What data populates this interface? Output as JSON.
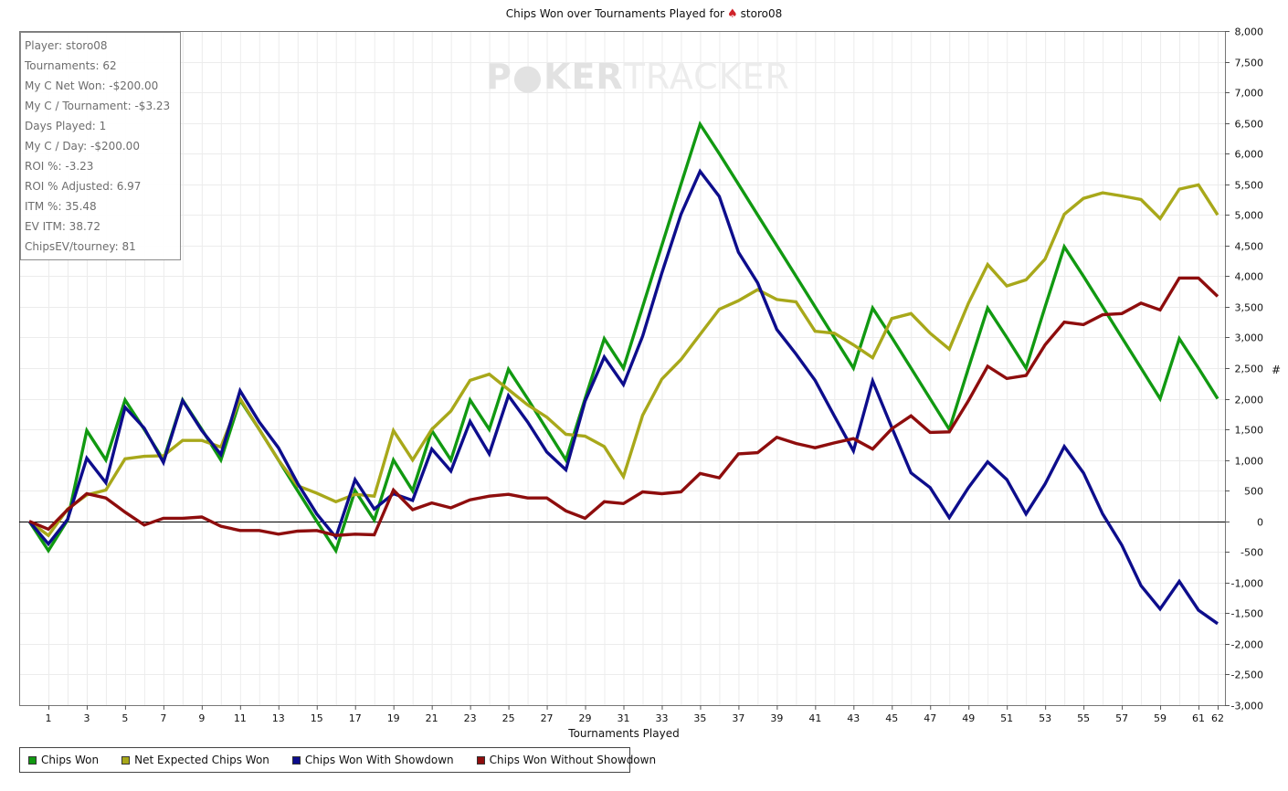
{
  "title": {
    "prefix": "Chips Won over Tournaments Played for",
    "icon": "spade-icon",
    "player": "storo08"
  },
  "watermark": {
    "bold": "P●KER",
    "light": "TRACKER"
  },
  "stats_box": [
    "Player: storo08",
    "Tournaments: 62",
    "My C Net Won: -$200.00",
    "My C / Tournament: -$3.23",
    "Days Played: 1",
    "My C / Day: -$200.00",
    "ROI %: -3.23",
    "ROI % Adjusted: 6.97",
    "ITM %: 35.48",
    "EV ITM: 38.72",
    "ChipsEV/tourney: 81"
  ],
  "legend": [
    {
      "label": "Chips Won",
      "color": "#119911"
    },
    {
      "label": "Net Expected Chips Won",
      "color": "#a8a81a"
    },
    {
      "label": "Chips Won With Showdown",
      "color": "#0d0d8c"
    },
    {
      "label": "Chips Won Without Showdown",
      "color": "#8e0d0d"
    }
  ],
  "chart_data": {
    "type": "line",
    "xlabel": "Tournaments Played",
    "ylabel": "#",
    "xlim": [
      0,
      62
    ],
    "ylim": [
      -3000,
      8000
    ],
    "x_ticks": [
      1,
      3,
      5,
      7,
      9,
      11,
      13,
      15,
      17,
      19,
      21,
      23,
      25,
      27,
      29,
      31,
      33,
      35,
      37,
      39,
      41,
      43,
      45,
      47,
      49,
      51,
      53,
      55,
      57,
      59,
      61,
      62
    ],
    "y_ticks": [
      -3000,
      -2500,
      -2000,
      -1500,
      -1000,
      -500,
      0,
      500,
      1000,
      1500,
      2000,
      2500,
      3000,
      3500,
      4000,
      4500,
      5000,
      5500,
      6000,
      6500,
      7000,
      7500,
      8000
    ],
    "y_tick_labels": [
      "-3,000",
      "-2,500",
      "-2,000",
      "-1,500",
      "-1,000",
      "-500",
      "0",
      "500",
      "1,000",
      "1,500",
      "2,000",
      "2,500",
      "3,000",
      "3,500",
      "4,000",
      "4,500",
      "5,000",
      "5,500",
      "6,000",
      "6,500",
      "7,000",
      "7,500",
      "8,000"
    ],
    "grid": true,
    "legend_position": "bottom",
    "x": [
      0,
      1,
      2,
      3,
      4,
      5,
      6,
      7,
      8,
      9,
      10,
      11,
      12,
      13,
      14,
      15,
      16,
      17,
      18,
      19,
      20,
      21,
      22,
      23,
      24,
      25,
      26,
      27,
      28,
      29,
      30,
      31,
      32,
      33,
      34,
      35,
      36,
      37,
      38,
      39,
      40,
      41,
      42,
      43,
      44,
      45,
      46,
      47,
      48,
      49,
      50,
      51,
      52,
      53,
      54,
      55,
      56,
      57,
      58,
      59,
      60,
      61,
      62
    ],
    "series": [
      {
        "name": "Chips Won",
        "color": "#119911",
        "values": [
          0,
          -480,
          20,
          1480,
          1000,
          1980,
          1500,
          1000,
          1980,
          1500,
          1000,
          1980,
          1500,
          1000,
          500,
          0,
          -480,
          500,
          20,
          1000,
          500,
          1480,
          1000,
          1980,
          1500,
          2480,
          2000,
          1500,
          1000,
          2000,
          2980,
          2500,
          3500,
          4500,
          5500,
          6480,
          6000,
          5500,
          5000,
          4500,
          4000,
          3500,
          3000,
          2500,
          3480,
          3000,
          2500,
          2000,
          1500,
          2500,
          3480,
          3000,
          2500,
          3500,
          4480,
          4000,
          3500,
          3000,
          2500,
          2000,
          2980,
          2500,
          2000
        ]
      },
      {
        "name": "Net Expected Chips Won",
        "color": "#a8a81a",
        "values": [
          0,
          -230,
          200,
          430,
          510,
          1020,
          1060,
          1070,
          1320,
          1320,
          1210,
          2000,
          1500,
          1000,
          580,
          460,
          320,
          440,
          410,
          1480,
          1000,
          1500,
          1800,
          2300,
          2400,
          2150,
          1900,
          1700,
          1420,
          1390,
          1220,
          730,
          1730,
          2320,
          2640,
          3050,
          3460,
          3600,
          3780,
          3620,
          3580,
          3100,
          3070,
          2880,
          2670,
          3310,
          3390,
          3070,
          2810,
          3560,
          4190,
          3840,
          3940,
          4280,
          5010,
          5270,
          5360,
          5310,
          5250,
          4940,
          5420,
          5490,
          5000
        ]
      },
      {
        "name": "Chips Won With Showdown",
        "color": "#0d0d8c",
        "values": [
          0,
          -370,
          30,
          1030,
          630,
          1860,
          1520,
          960,
          1970,
          1480,
          1090,
          2130,
          1620,
          1200,
          620,
          120,
          -260,
          680,
          200,
          450,
          340,
          1180,
          820,
          1630,
          1100,
          2050,
          1620,
          1130,
          840,
          1960,
          2680,
          2230,
          3020,
          4050,
          5010,
          5710,
          5300,
          4390,
          3890,
          3130,
          2730,
          2300,
          1720,
          1150,
          2290,
          1530,
          790,
          550,
          60,
          550,
          970,
          680,
          120,
          610,
          1220,
          790,
          120,
          -390,
          -1050,
          -1430,
          -980,
          -1450,
          -1670
        ]
      },
      {
        "name": "Chips Won Without Showdown",
        "color": "#8e0d0d",
        "values": [
          0,
          -130,
          190,
          450,
          380,
          150,
          -60,
          50,
          50,
          70,
          -80,
          -150,
          -150,
          -210,
          -160,
          -150,
          -230,
          -210,
          -220,
          510,
          190,
          300,
          220,
          350,
          410,
          440,
          380,
          380,
          170,
          50,
          320,
          290,
          480,
          450,
          480,
          780,
          710,
          1100,
          1120,
          1370,
          1270,
          1200,
          1280,
          1350,
          1180,
          1510,
          1720,
          1450,
          1460,
          1970,
          2530,
          2330,
          2380,
          2880,
          3250,
          3210,
          3370,
          3390,
          3560,
          3450,
          3970,
          3970,
          3670
        ]
      }
    ]
  }
}
